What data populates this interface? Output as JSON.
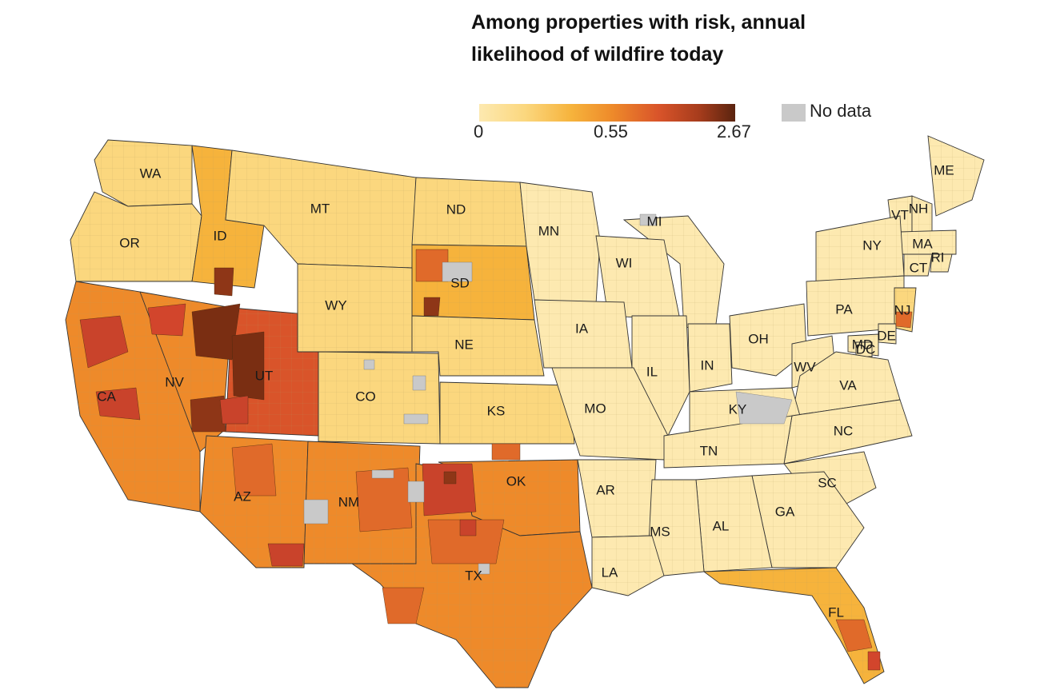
{
  "title_line1": "Among properties with risk, annual",
  "title_line2": "likelihood of wildfire today",
  "legend": {
    "ticks": [
      "0",
      "0.55",
      "2.67"
    ],
    "no_data_label": "No data",
    "colors": [
      "#fde9b0",
      "#fbd77e",
      "#f6b33c",
      "#ee8a2a",
      "#d9542a",
      "#a63c1c",
      "#5a240f"
    ],
    "no_data_color": "#c9c9c9"
  },
  "states": [
    {
      "abbr": "WA",
      "level": 1
    },
    {
      "abbr": "OR",
      "level": 1
    },
    {
      "abbr": "ID",
      "level": 2
    },
    {
      "abbr": "MT",
      "level": 1
    },
    {
      "abbr": "ND",
      "level": 1
    },
    {
      "abbr": "MN",
      "level": 0
    },
    {
      "abbr": "MI",
      "level": 0
    },
    {
      "abbr": "WI",
      "level": 0
    },
    {
      "abbr": "ME",
      "level": 0
    },
    {
      "abbr": "VT",
      "level": 0
    },
    {
      "abbr": "NH",
      "level": 0
    },
    {
      "abbr": "MA",
      "level": 0
    },
    {
      "abbr": "NY",
      "level": 0
    },
    {
      "abbr": "CT",
      "level": 0
    },
    {
      "abbr": "RI",
      "level": 0
    },
    {
      "abbr": "SD",
      "level": 2
    },
    {
      "abbr": "WY",
      "level": 1
    },
    {
      "abbr": "PA",
      "level": 0
    },
    {
      "abbr": "NJ",
      "level": 1
    },
    {
      "abbr": "DE",
      "level": 0
    },
    {
      "abbr": "MD",
      "level": 0
    },
    {
      "abbr": "DC",
      "level": 0
    },
    {
      "abbr": "IA",
      "level": 0
    },
    {
      "abbr": "NE",
      "level": 1
    },
    {
      "abbr": "OH",
      "level": 0
    },
    {
      "abbr": "IN",
      "level": 0
    },
    {
      "abbr": "IL",
      "level": 0
    },
    {
      "abbr": "WV",
      "level": 0
    },
    {
      "abbr": "NV",
      "level": 3
    },
    {
      "abbr": "UT",
      "level": 4
    },
    {
      "abbr": "VA",
      "level": 0
    },
    {
      "abbr": "CA",
      "level": 3
    },
    {
      "abbr": "CO",
      "level": 1
    },
    {
      "abbr": "KS",
      "level": 1
    },
    {
      "abbr": "MO",
      "level": 0
    },
    {
      "abbr": "KY",
      "level": 0
    },
    {
      "abbr": "NC",
      "level": 0
    },
    {
      "abbr": "TN",
      "level": 0
    },
    {
      "abbr": "SC",
      "level": 0
    },
    {
      "abbr": "OK",
      "level": 3
    },
    {
      "abbr": "AZ",
      "level": 3
    },
    {
      "abbr": "NM",
      "level": 3
    },
    {
      "abbr": "AR",
      "level": 0
    },
    {
      "abbr": "GA",
      "level": 0
    },
    {
      "abbr": "AL",
      "level": 0
    },
    {
      "abbr": "MS",
      "level": 0
    },
    {
      "abbr": "LA",
      "level": 0
    },
    {
      "abbr": "TX",
      "level": 3
    },
    {
      "abbr": "FL",
      "level": 2
    }
  ]
}
